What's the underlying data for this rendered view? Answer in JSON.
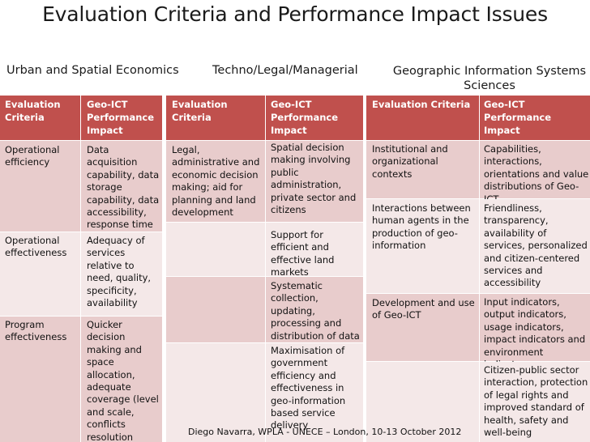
{
  "slide": {
    "title": "Evaluation Criteria and Performance Impact Issues",
    "footer": "Diego Navarra, WPLA - UNECE  – London,  10-13 October 2012"
  },
  "panels": {
    "urban": {
      "heading": "Urban and Spatial Economics",
      "col1_header": "Evaluation Criteria",
      "col2_header": "Geo-ICT Performance Impact",
      "rows": [
        {
          "criteria": "Operational efficiency",
          "impact": "Data acquisition capability, data storage capability, data accessibility, response time"
        },
        {
          "criteria": "Operational effectiveness",
          "impact": "Adequacy of services relative to need, quality, specificity, availability"
        },
        {
          "criteria": "Program effectiveness",
          "impact": "Quicker decision making and space allocation, adequate coverage (level and scale, conflicts resolution"
        }
      ]
    },
    "techno": {
      "heading": "Techno/Legal/Managerial",
      "col1_header": "Evaluation Criteria",
      "col2_header": "Geo-ICT Performance Impact",
      "criteria": "Legal, administrative and economic decision making; aid for planning and land development",
      "impacts": [
        "Spatial decision making involving public administration, private sector and citizens",
        "Support for efficient and effective land markets",
        "Systematic collection, updating, processing and distribution of data",
        "Maximisation of government efficiency and effectiveness in geo-information based service delivery"
      ]
    },
    "gis": {
      "heading": "Geographic Information Systems Sciences",
      "col1_header": "Evaluation Criteria",
      "col2_header": "Geo-ICT Performance Impact",
      "rows": [
        {
          "criteria": "Institutional and organizational contexts",
          "impact": "Capabilities, interactions, orientations and value distributions of Geo-ICT"
        },
        {
          "criteria": "Interactions between human agents in the production of geo-information",
          "impact": "Friendliness, transparency, availability of services, personalized and citizen-centered services and accessibility"
        },
        {
          "criteria": "Development and use of Geo-ICT",
          "impact": "Input indicators, output indicators, usage indicators, impact indicators and environment indicators"
        },
        {
          "criteria": "",
          "impact": "Citizen-public sector interaction, protection of legal rights and improved standard of health, safety and well-being"
        }
      ]
    }
  }
}
